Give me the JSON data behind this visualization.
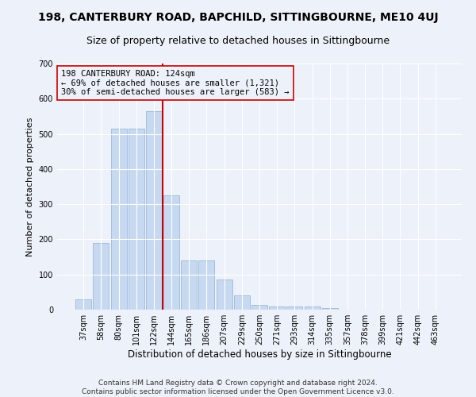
{
  "title": "198, CANTERBURY ROAD, BAPCHILD, SITTINGBOURNE, ME10 4UJ",
  "subtitle": "Size of property relative to detached houses in Sittingbourne",
  "xlabel": "Distribution of detached houses by size in Sittingbourne",
  "ylabel": "Number of detached properties",
  "footnote": "Contains HM Land Registry data © Crown copyright and database right 2024.\nContains public sector information licensed under the Open Government Licence v3.0.",
  "categories": [
    "37sqm",
    "58sqm",
    "80sqm",
    "101sqm",
    "122sqm",
    "144sqm",
    "165sqm",
    "186sqm",
    "207sqm",
    "229sqm",
    "250sqm",
    "271sqm",
    "293sqm",
    "314sqm",
    "335sqm",
    "357sqm",
    "378sqm",
    "399sqm",
    "421sqm",
    "442sqm",
    "463sqm"
  ],
  "values": [
    30,
    190,
    515,
    515,
    565,
    325,
    140,
    140,
    85,
    40,
    13,
    10,
    10,
    8,
    5,
    0,
    0,
    0,
    0,
    0,
    0
  ],
  "bar_color": "#c6d9f0",
  "bar_edge_color": "#9ab8d8",
  "vline_x": 4.5,
  "vline_color": "#cc0000",
  "annotation_text": "198 CANTERBURY ROAD: 124sqm\n← 69% of detached houses are smaller (1,321)\n30% of semi-detached houses are larger (583) →",
  "ylim": [
    0,
    700
  ],
  "yticks": [
    0,
    100,
    200,
    300,
    400,
    500,
    600,
    700
  ],
  "background_color": "#edf2fa",
  "grid_color": "#ffffff",
  "title_fontsize": 10,
  "subtitle_fontsize": 9,
  "ylabel_fontsize": 8,
  "xlabel_fontsize": 8.5,
  "tick_fontsize": 7,
  "annotation_fontsize": 7.5,
  "footnote_fontsize": 6.5
}
